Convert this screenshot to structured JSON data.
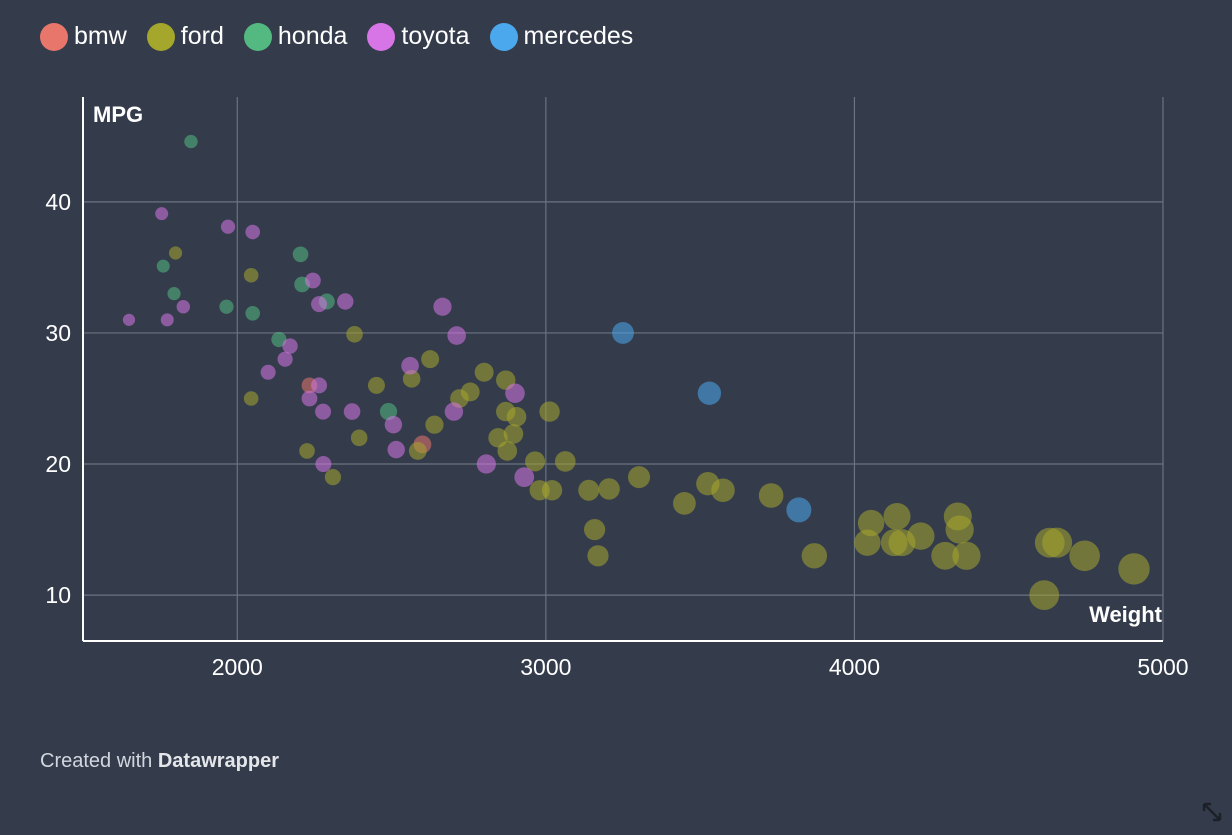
{
  "legend": [
    {
      "name": "bmw",
      "color": "#e8766b"
    },
    {
      "name": "ford",
      "color": "#a5a62c"
    },
    {
      "name": "honda",
      "color": "#53b981"
    },
    {
      "name": "toyota",
      "color": "#d774e6"
    },
    {
      "name": "mercedes",
      "color": "#4ba8ec"
    }
  ],
  "footer": {
    "prefix": "Created with ",
    "brand": "Datawrapper"
  },
  "chart_data": {
    "type": "scatter",
    "title": "",
    "xlabel": "Weight",
    "ylabel": "MPG",
    "xlim": [
      1500,
      5000
    ],
    "ylim": [
      6.5,
      48
    ],
    "x_ticks": [
      2000,
      3000,
      4000,
      5000
    ],
    "y_ticks": [
      10,
      20,
      30,
      40
    ],
    "grid": true,
    "legend_position": "top-left",
    "series": [
      {
        "name": "bmw",
        "color": "#e8766b",
        "points": [
          {
            "x": 2234,
            "y": 26
          },
          {
            "x": 2600,
            "y": 21.5
          }
        ]
      },
      {
        "name": "ford",
        "color": "#a5a62c",
        "points": [
          {
            "x": 1800,
            "y": 36.1
          },
          {
            "x": 2045,
            "y": 34.4
          },
          {
            "x": 2045,
            "y": 25
          },
          {
            "x": 2226,
            "y": 21
          },
          {
            "x": 2310,
            "y": 19
          },
          {
            "x": 2380,
            "y": 29.9
          },
          {
            "x": 2395,
            "y": 22
          },
          {
            "x": 2451,
            "y": 26
          },
          {
            "x": 2565,
            "y": 26.5
          },
          {
            "x": 2585,
            "y": 21
          },
          {
            "x": 2625,
            "y": 28
          },
          {
            "x": 2639,
            "y": 23
          },
          {
            "x": 2720,
            "y": 25
          },
          {
            "x": 2755,
            "y": 25.5
          },
          {
            "x": 2800,
            "y": 27
          },
          {
            "x": 2845,
            "y": 22
          },
          {
            "x": 2870,
            "y": 26.4
          },
          {
            "x": 2870,
            "y": 24
          },
          {
            "x": 2875,
            "y": 21
          },
          {
            "x": 2895,
            "y": 22.3
          },
          {
            "x": 2905,
            "y": 23.6
          },
          {
            "x": 2965,
            "y": 20.2
          },
          {
            "x": 2980,
            "y": 18
          },
          {
            "x": 3012,
            "y": 24
          },
          {
            "x": 3020,
            "y": 18
          },
          {
            "x": 3063,
            "y": 20.2
          },
          {
            "x": 3139,
            "y": 18
          },
          {
            "x": 3158,
            "y": 15
          },
          {
            "x": 3169,
            "y": 13
          },
          {
            "x": 3205,
            "y": 18.1
          },
          {
            "x": 3302,
            "y": 19
          },
          {
            "x": 3449,
            "y": 17
          },
          {
            "x": 3525,
            "y": 18.5
          },
          {
            "x": 3574,
            "y": 18
          },
          {
            "x": 3730,
            "y": 17.6
          },
          {
            "x": 3870,
            "y": 13
          },
          {
            "x": 4042,
            "y": 14
          },
          {
            "x": 4054,
            "y": 15.5
          },
          {
            "x": 4129,
            "y": 14
          },
          {
            "x": 4138,
            "y": 16
          },
          {
            "x": 4154,
            "y": 14
          },
          {
            "x": 4215,
            "y": 14.5
          },
          {
            "x": 4294,
            "y": 13
          },
          {
            "x": 4335,
            "y": 16
          },
          {
            "x": 4341,
            "y": 15
          },
          {
            "x": 4363,
            "y": 13
          },
          {
            "x": 4615,
            "y": 10
          },
          {
            "x": 4633,
            "y": 14
          },
          {
            "x": 4657,
            "y": 14
          },
          {
            "x": 4746,
            "y": 13
          },
          {
            "x": 4906,
            "y": 12
          }
        ]
      },
      {
        "name": "honda",
        "color": "#53b981",
        "points": [
          {
            "x": 1850,
            "y": 44.6
          },
          {
            "x": 1760,
            "y": 35.1
          },
          {
            "x": 1795,
            "y": 33
          },
          {
            "x": 1965,
            "y": 32
          },
          {
            "x": 2050,
            "y": 31.5
          },
          {
            "x": 2135,
            "y": 29.5
          },
          {
            "x": 2205,
            "y": 36
          },
          {
            "x": 2210,
            "y": 33.7
          },
          {
            "x": 2290,
            "y": 32.4
          },
          {
            "x": 2490,
            "y": 24
          }
        ]
      },
      {
        "name": "toyota",
        "color": "#d774e6",
        "points": [
          {
            "x": 1649,
            "y": 31
          },
          {
            "x": 1755,
            "y": 39.1
          },
          {
            "x": 1773,
            "y": 31
          },
          {
            "x": 1825,
            "y": 32
          },
          {
            "x": 1970,
            "y": 38.1
          },
          {
            "x": 2050,
            "y": 37.7
          },
          {
            "x": 2100,
            "y": 27
          },
          {
            "x": 2155,
            "y": 28
          },
          {
            "x": 2171,
            "y": 29
          },
          {
            "x": 2234,
            "y": 25
          },
          {
            "x": 2245,
            "y": 34
          },
          {
            "x": 2265,
            "y": 32.2
          },
          {
            "x": 2265,
            "y": 26
          },
          {
            "x": 2278,
            "y": 24
          },
          {
            "x": 2279,
            "y": 20
          },
          {
            "x": 2350,
            "y": 32.4
          },
          {
            "x": 2372,
            "y": 24
          },
          {
            "x": 2506,
            "y": 23
          },
          {
            "x": 2515,
            "y": 21.1
          },
          {
            "x": 2560,
            "y": 27.5
          },
          {
            "x": 2665,
            "y": 32
          },
          {
            "x": 2702,
            "y": 24
          },
          {
            "x": 2711,
            "y": 29.8
          },
          {
            "x": 2807,
            "y": 20
          },
          {
            "x": 2900,
            "y": 25.4
          },
          {
            "x": 2930,
            "y": 19
          }
        ]
      },
      {
        "name": "mercedes",
        "color": "#4ba8ec",
        "points": [
          {
            "x": 3250,
            "y": 30
          },
          {
            "x": 3530,
            "y": 25.4
          },
          {
            "x": 3820,
            "y": 16.5
          }
        ]
      }
    ]
  }
}
